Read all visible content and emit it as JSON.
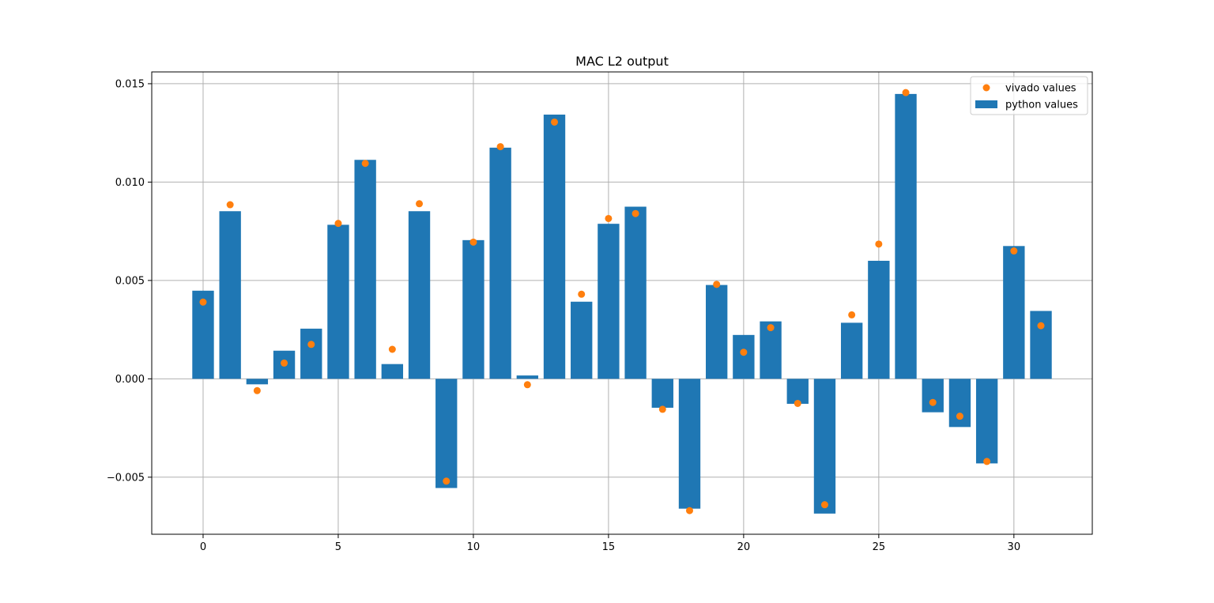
{
  "chart_data": {
    "type": "bar",
    "title": "MAC L2 output",
    "xlabel": "",
    "ylabel": "",
    "xlim": [
      -1.9,
      32.9
    ],
    "ylim": [
      -0.0079,
      0.0156
    ],
    "x_ticks": [
      0,
      5,
      10,
      15,
      20,
      25,
      30
    ],
    "x_tick_labels": [
      "0",
      "5",
      "10",
      "15",
      "20",
      "25",
      "30"
    ],
    "y_ticks": [
      -0.005,
      0.0,
      0.005,
      0.01,
      0.015
    ],
    "y_tick_labels": [
      "−0.005",
      "0.000",
      "0.005",
      "0.010",
      "0.015"
    ],
    "grid": true,
    "legend_position": "top-right",
    "x": [
      0,
      1,
      2,
      3,
      4,
      5,
      6,
      7,
      8,
      9,
      10,
      11,
      12,
      13,
      14,
      15,
      16,
      17,
      18,
      19,
      20,
      21,
      22,
      23,
      24,
      25,
      26,
      27,
      28,
      29,
      30,
      31
    ],
    "series": [
      {
        "name": "vivado values",
        "kind": "scatter",
        "color": "#ff7f0e",
        "values": [
          0.0039,
          0.00885,
          -0.0006,
          0.0008,
          0.00175,
          0.0079,
          0.01095,
          0.0015,
          0.0089,
          -0.0052,
          0.00695,
          0.0118,
          -0.0003,
          0.01305,
          0.0043,
          0.00815,
          0.0084,
          -0.00155,
          -0.0067,
          0.0048,
          0.00135,
          0.0026,
          -0.00125,
          -0.0064,
          0.00325,
          0.00685,
          0.01455,
          -0.0012,
          -0.0019,
          -0.0042,
          0.0065,
          0.0027
        ]
      },
      {
        "name": "python values",
        "kind": "bar",
        "color": "#1f77b4",
        "values": [
          0.00448,
          0.00852,
          -0.00028,
          0.00143,
          0.00255,
          0.00783,
          0.01113,
          0.00075,
          0.00852,
          -0.00555,
          0.00705,
          0.01175,
          0.00017,
          0.01343,
          0.00392,
          0.00788,
          0.00875,
          -0.00147,
          -0.0066,
          0.00477,
          0.00223,
          0.00292,
          -0.00127,
          -0.00685,
          0.00285,
          0.006,
          0.01448,
          -0.0017,
          -0.00245,
          -0.0043,
          0.00675,
          0.00345
        ]
      }
    ]
  }
}
